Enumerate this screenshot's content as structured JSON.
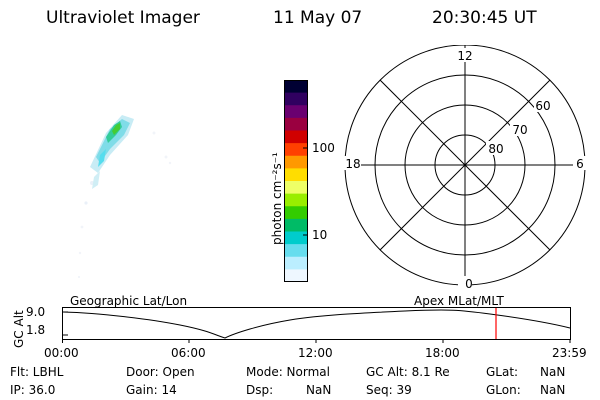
{
  "header": {
    "instrument": "Ultraviolet Imager",
    "date": "11 May 07",
    "time": "20:30:45 UT"
  },
  "colorbar": {
    "unit_label": "photon cm⁻²s⁻¹",
    "tick_100": "100",
    "tick_10": "10",
    "colors": [
      "#000033",
      "#300060",
      "#6a0070",
      "#9a0040",
      "#d00000",
      "#ff4000",
      "#ff9900",
      "#ffdd00",
      "#eeff66",
      "#99ee00",
      "#33cc00",
      "#00bb66",
      "#00cccc",
      "#66ddee",
      "#bbeeff",
      "#eef7ff"
    ]
  },
  "polar_plot": {
    "label_top": "12",
    "label_bottom": "0",
    "label_left": "18",
    "label_right": "6",
    "ring_60": "60",
    "ring_70": "70",
    "ring_80": "80"
  },
  "timeline": {
    "left_title": "Geographic Lat/Lon",
    "right_title": "Apex MLat/MLT",
    "axis_label": "GC Alt",
    "y_max": "9.0",
    "y_min": "1.8",
    "ticks": [
      "00:00",
      "06:00",
      "12:00",
      "18:00",
      "23:59"
    ],
    "marker_color": "#ff0000"
  },
  "info": {
    "flt": "Flt: LBHL",
    "ip": "IP: 36.0",
    "door": "Door: Open",
    "gain": "Gain: 14",
    "mode": "Mode: Normal",
    "dsp_label": "Dsp:",
    "dsp_value": "NaN",
    "gcalt": "GC Alt: 8.1 Re",
    "seq": "Seq: 39",
    "glat_label": "GLat:",
    "glat_value": "NaN",
    "glon_label": "GLon:",
    "glon_value": "NaN"
  }
}
